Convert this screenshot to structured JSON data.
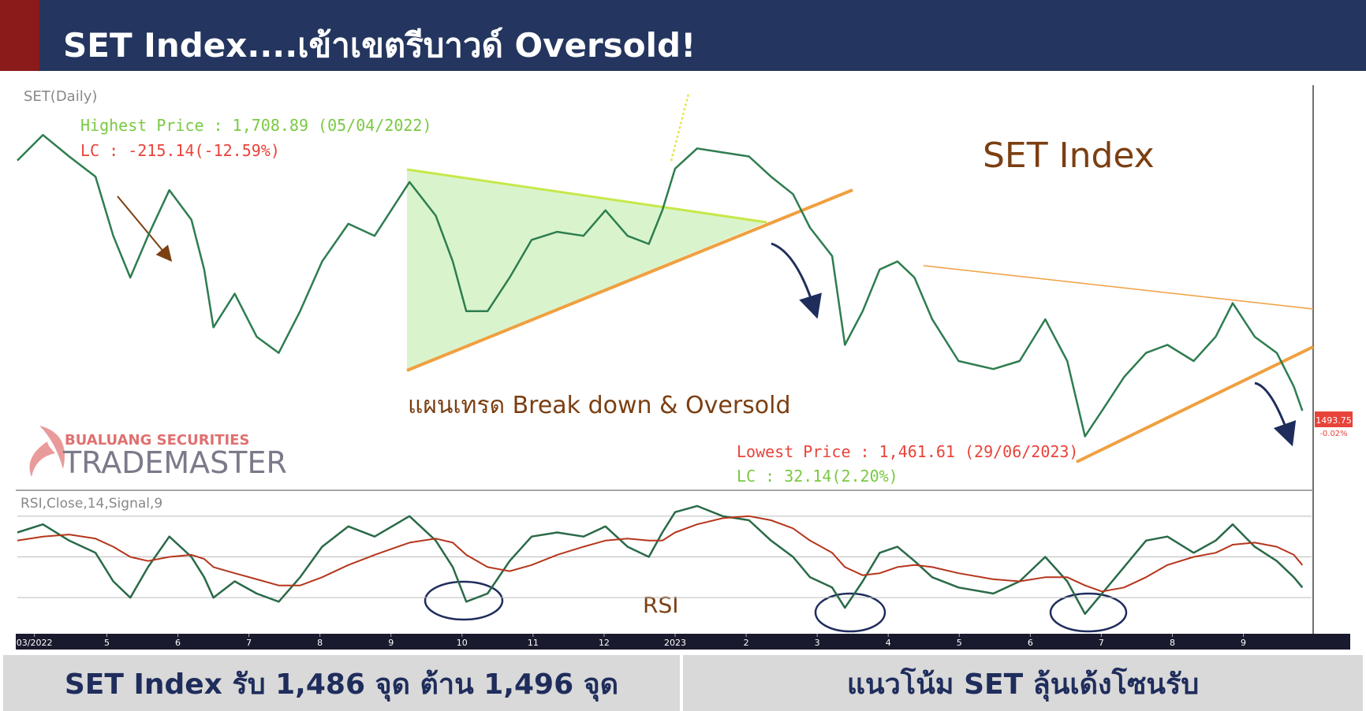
{
  "header": {
    "title": "SET Index....เข้าเขตรีบาวด์ Oversold!"
  },
  "chart_data": [
    {
      "type": "line",
      "title": "SET(Daily)",
      "x": [
        3.74,
        4.1,
        4.47,
        4.84,
        5.09,
        5.33,
        5.58,
        5.88,
        6.19,
        6.37,
        6.5,
        6.8,
        7.11,
        7.42,
        7.72,
        8.03,
        8.4,
        8.77,
        9.26,
        9.63,
        9.87,
        10.06,
        10.36,
        10.67,
        10.98,
        11.34,
        11.71,
        12.02,
        12.33,
        12.63,
        12.82,
        13.0,
        13.31,
        13.67,
        14.04,
        14.35,
        14.66,
        14.9,
        15.21,
        15.39,
        15.64,
        15.88,
        16.13,
        16.37,
        16.62,
        16.99,
        17.48,
        17.85,
        18.21,
        18.52,
        18.77,
        19.01,
        19.32,
        19.63,
        19.93,
        20.3,
        20.61,
        20.85,
        21.16,
        21.47,
        21.71,
        21.83
      ],
      "series": [
        {
          "name": "SET Index",
          "color": "#2e7d4f",
          "values": [
            1681,
            1700,
            1684,
            1669,
            1625,
            1594,
            1625,
            1659,
            1637,
            1600,
            1557,
            1582,
            1550,
            1538,
            1569,
            1606,
            1634,
            1625,
            1665,
            1640,
            1606,
            1569,
            1569,
            1594,
            1622,
            1628,
            1625,
            1644,
            1625,
            1619,
            1644,
            1675,
            1690,
            1687,
            1684,
            1669,
            1656,
            1631,
            1610,
            1544,
            1569,
            1600,
            1606,
            1594,
            1563,
            1532,
            1526,
            1532,
            1563,
            1532,
            1476,
            1495,
            1520,
            1538,
            1544,
            1532,
            1550,
            1575,
            1550,
            1538,
            1513,
            1495
          ]
        }
      ],
      "xlim": [
        3.74,
        21.96
      ],
      "xticks": [
        {
          "value": 3.98,
          "label": "03/2022"
        },
        5,
        6,
        7,
        8,
        9,
        10,
        11,
        12,
        {
          "value": 13,
          "label": "2023"
        },
        {
          "value": 14,
          "label": "2"
        },
        {
          "value": 15,
          "label": "3"
        },
        {
          "value": 16,
          "label": "4"
        },
        {
          "value": 17,
          "label": "5"
        },
        {
          "value": 18,
          "label": "6"
        },
        {
          "value": 19,
          "label": "7"
        },
        {
          "value": 20,
          "label": "8"
        },
        {
          "value": 21,
          "label": "9"
        }
      ],
      "ylim": [
        1440,
        1730
      ],
      "last_price": 1493.75,
      "last_change": "-0.02%",
      "annotations": {
        "highest": "Highest Price : 1,708.89 (05/04/2022)",
        "highest_lc": "LC : -215.14(-12.59%)",
        "lowest": "Lowest Price : 1,461.61 (29/06/2023)",
        "lowest_lc": "LC : 32.14(2.20%)",
        "plan": "แผนเทรด Break down & Oversold"
      },
      "logo": {
        "company": "BUALUANG SECURITIES",
        "brand": "TRADEMASTER"
      }
    },
    {
      "type": "line",
      "title": "RSI,Close,14,Signal,9",
      "series": [
        {
          "name": "RSI",
          "color": "#2a6a48",
          "values": [
            62,
            66,
            58,
            52,
            38,
            30,
            45,
            60,
            50,
            40,
            30,
            38,
            32,
            28,
            40,
            55,
            65,
            60,
            70,
            58,
            45,
            28,
            32,
            48,
            60,
            62,
            60,
            65,
            55,
            50,
            62,
            72,
            75,
            70,
            68,
            58,
            50,
            40,
            35,
            25,
            38,
            52,
            55,
            48,
            40,
            35,
            32,
            38,
            50,
            38,
            22,
            32,
            45,
            58,
            60,
            52,
            58,
            66,
            55,
            48,
            40,
            35
          ]
        },
        {
          "color": "#b5361c",
          "values": [
            58,
            60,
            61,
            59,
            55,
            50,
            48,
            50,
            51,
            49,
            45,
            42,
            39,
            36,
            36,
            40,
            46,
            51,
            57,
            59,
            57,
            51,
            45,
            43,
            46,
            51,
            55,
            58,
            59,
            58,
            58,
            62,
            66,
            69,
            70,
            68,
            64,
            58,
            52,
            45,
            41,
            42,
            45,
            46,
            45,
            42,
            39,
            38,
            40,
            40,
            36,
            33,
            35,
            40,
            46,
            50,
            52,
            56,
            57,
            55,
            51,
            46
          ]
        }
      ],
      "ylim": [
        20,
        80
      ],
      "yticks": [
        30,
        50,
        70
      ],
      "grid": true
    }
  ],
  "footer": {
    "left": "SET Index รับ 1,486 จุด ต้าน 1,496 จุด",
    "right": "แนวโน้ม SET ลุ้นเด้งโซนรับ"
  }
}
